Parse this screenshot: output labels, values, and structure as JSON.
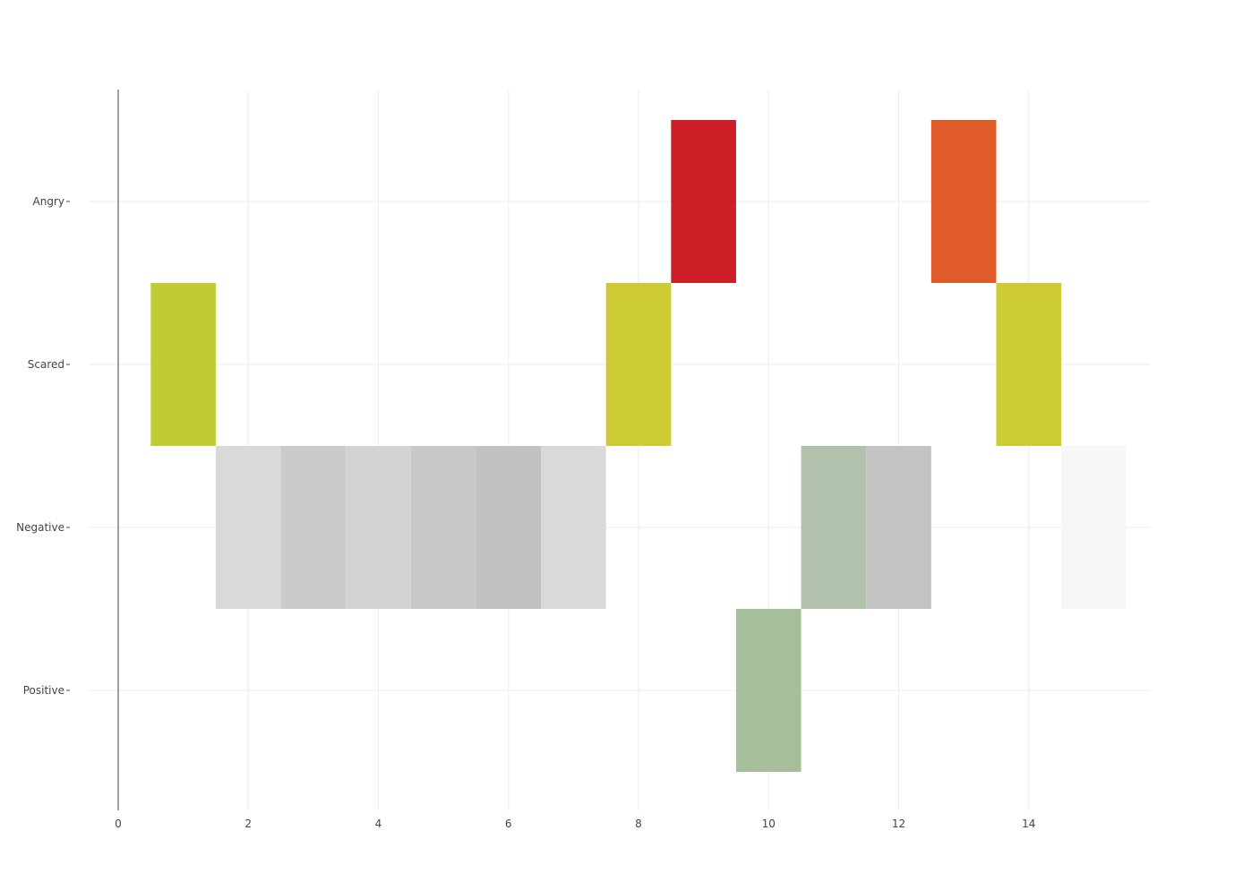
{
  "chart_data": {
    "type": "heatmap",
    "title": "",
    "xlabel": "",
    "ylabel": "",
    "xlim": [
      0,
      16
    ],
    "x_ticks": [
      0,
      2,
      4,
      6,
      8,
      10,
      12,
      14
    ],
    "grid": true,
    "categories": [
      "Angry",
      "Scared",
      "Negative",
      "Positive"
    ],
    "cells": [
      {
        "x": 1,
        "category": "Scared",
        "color": "#c1cb36"
      },
      {
        "x": 2,
        "category": "Negative",
        "color": "#d9d9d9"
      },
      {
        "x": 3,
        "category": "Negative",
        "color": "#cbcbcb"
      },
      {
        "x": 4,
        "category": "Negative",
        "color": "#d3d3d3"
      },
      {
        "x": 5,
        "category": "Negative",
        "color": "#c8c8c8"
      },
      {
        "x": 6,
        "category": "Negative",
        "color": "#c2c2c2"
      },
      {
        "x": 7,
        "category": "Negative",
        "color": "#d9d9d9"
      },
      {
        "x": 8,
        "category": "Scared",
        "color": "#cdcb33"
      },
      {
        "x": 9,
        "category": "Angry",
        "color": "#cc1f28"
      },
      {
        "x": 10,
        "category": "Positive",
        "color": "#a6bf9b"
      },
      {
        "x": 11,
        "category": "Negative",
        "color": "#b1c1ac"
      },
      {
        "x": 12,
        "category": "Negative",
        "color": "#c3c3c3"
      },
      {
        "x": 13,
        "category": "Angry",
        "color": "#df5b2a"
      },
      {
        "x": 14,
        "category": "Scared",
        "color": "#cdcb33"
      },
      {
        "x": 15,
        "category": "Negative",
        "color": "#f7f7f7"
      }
    ]
  }
}
